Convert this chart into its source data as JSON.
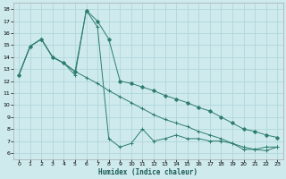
{
  "title": "",
  "xlabel": "Humidex (Indice chaleur)",
  "bg_color": "#ceeaed",
  "grid_color": "#b0d8dc",
  "line_color": "#2e7d6e",
  "xlim": [
    -0.5,
    23.5
  ],
  "ylim": [
    5.5,
    18.5
  ],
  "yticks": [
    6,
    7,
    8,
    9,
    10,
    11,
    12,
    13,
    14,
    15,
    16,
    17,
    18
  ],
  "xticks": [
    0,
    1,
    2,
    3,
    4,
    5,
    6,
    7,
    8,
    9,
    10,
    11,
    12,
    13,
    14,
    15,
    16,
    17,
    18,
    19,
    20,
    21,
    22,
    23
  ],
  "line1_x": [
    0,
    1,
    2,
    3,
    4,
    5,
    6,
    7,
    8,
    9,
    10,
    11,
    12,
    13,
    14,
    15,
    16,
    17,
    18,
    19,
    20,
    21,
    22,
    23
  ],
  "line1_y": [
    12.5,
    14.9,
    15.5,
    14.0,
    13.5,
    12.8,
    17.9,
    17.0,
    15.5,
    12.0,
    11.8,
    11.5,
    11.2,
    10.8,
    10.5,
    10.2,
    9.8,
    9.5,
    9.0,
    8.5,
    8.0,
    7.8,
    7.5,
    7.3
  ],
  "line2_x": [
    0,
    1,
    2,
    3,
    4,
    5,
    6,
    7,
    8,
    9,
    10,
    11,
    12,
    13,
    14,
    15,
    16,
    17,
    18,
    19,
    20,
    21,
    22,
    23
  ],
  "line2_y": [
    12.5,
    14.9,
    15.5,
    14.0,
    13.5,
    12.5,
    17.9,
    16.5,
    7.2,
    6.5,
    6.8,
    8.0,
    7.0,
    7.2,
    7.5,
    7.2,
    7.2,
    7.0,
    7.0,
    6.8,
    6.3,
    6.3,
    6.5,
    6.5
  ],
  "line3_x": [
    0,
    1,
    2,
    3,
    4,
    5,
    6,
    7,
    8,
    9,
    10,
    11,
    12,
    13,
    14,
    15,
    16,
    17,
    18,
    19,
    20,
    21,
    22,
    23
  ],
  "line3_y": [
    12.5,
    14.9,
    15.5,
    14.0,
    13.5,
    12.8,
    12.3,
    11.8,
    11.2,
    10.7,
    10.2,
    9.7,
    9.2,
    8.8,
    8.5,
    8.2,
    7.8,
    7.5,
    7.2,
    6.8,
    6.5,
    6.3,
    6.2,
    6.5
  ],
  "marker1": "D",
  "marker2": "+",
  "marker3": "+"
}
